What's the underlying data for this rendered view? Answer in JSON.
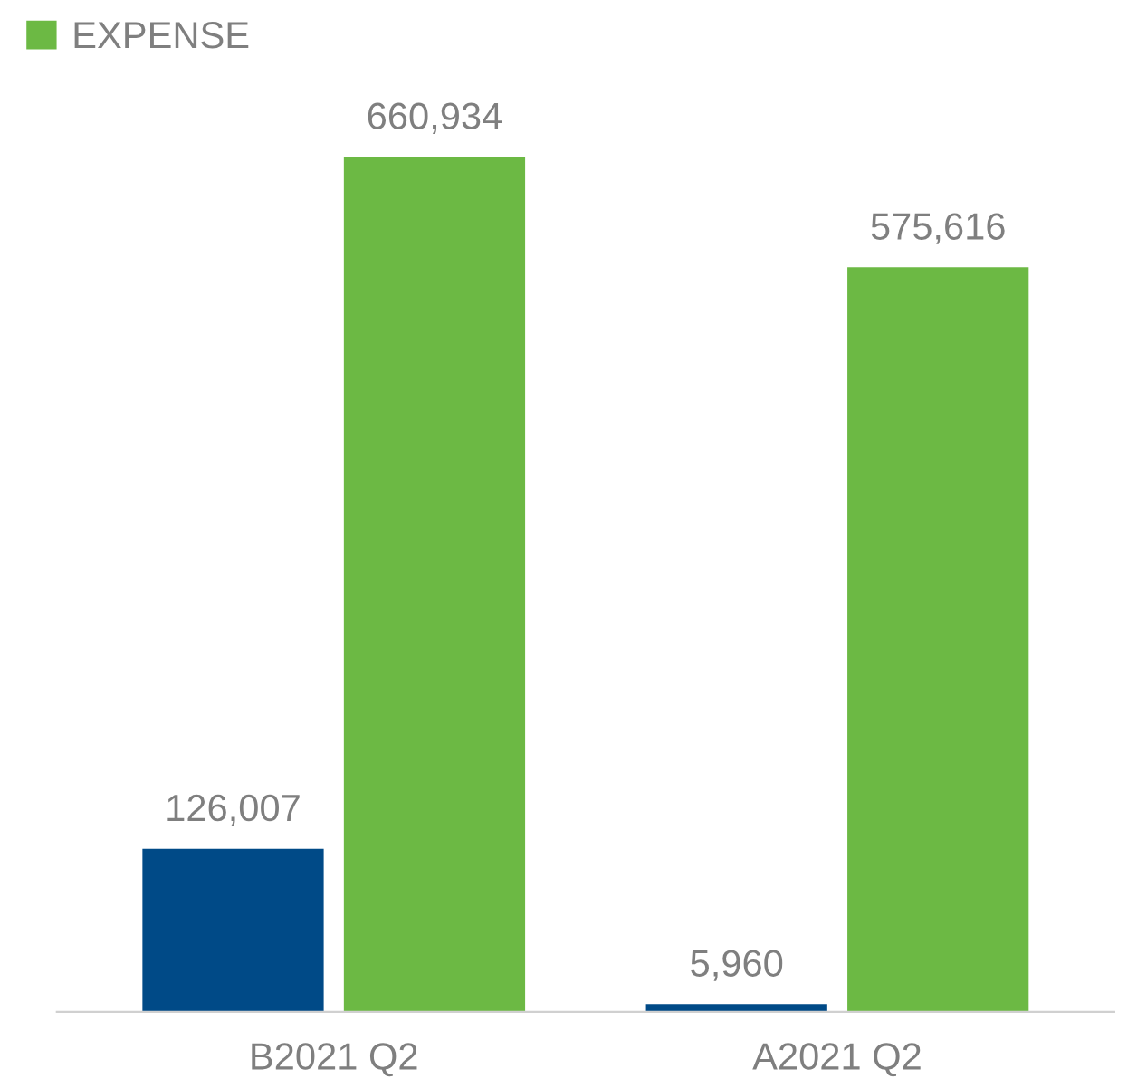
{
  "chart_data": {
    "type": "bar",
    "categories": [
      "B2021 Q2",
      "A2021 Q2"
    ],
    "series": [
      {
        "color": "#004a87",
        "values": [
          126007,
          5960
        ],
        "value_labels": [
          "126,007",
          "5,960"
        ]
      },
      {
        "name": "EXPENSE",
        "color": "#6cb944",
        "values": [
          660934,
          575616
        ],
        "value_labels": [
          "660,934",
          "575,616"
        ]
      }
    ],
    "legend": "top left",
    "grid": false
  }
}
